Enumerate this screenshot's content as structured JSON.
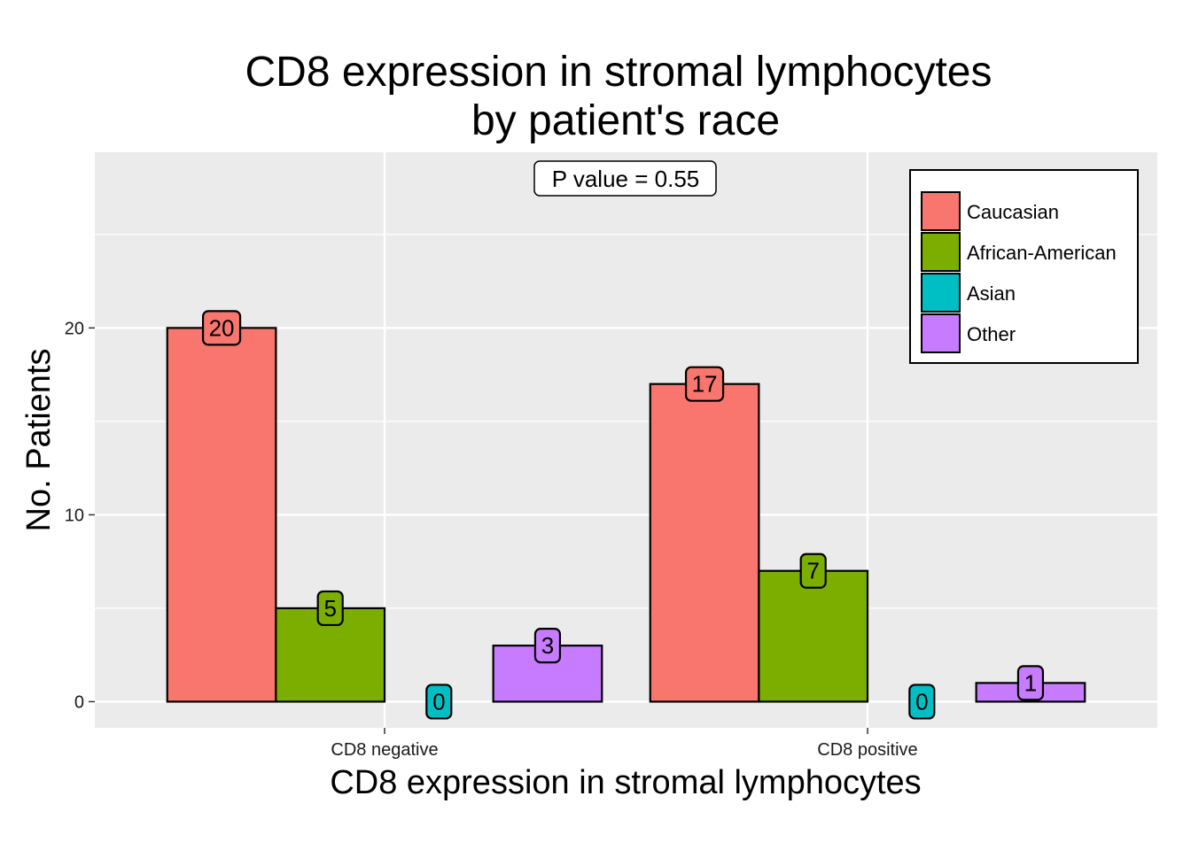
{
  "chart_data": {
    "type": "bar",
    "title": [
      "CD8 expression in stromal lymphocytes",
      "by patient's race"
    ],
    "xlabel": "CD8 expression in stromal lymphocytes",
    "ylabel": "No. Patients",
    "categories": [
      "CD8 negative",
      "CD8 positive"
    ],
    "series": [
      {
        "name": "Caucasian",
        "color": "#F8766D",
        "values": [
          20,
          17
        ]
      },
      {
        "name": "African-American",
        "color": "#7CAE00",
        "values": [
          5,
          7
        ]
      },
      {
        "name": "Asian",
        "color": "#00BFC4",
        "values": [
          0,
          0
        ]
      },
      {
        "name": "Other",
        "color": "#C77CFF",
        "values": [
          3,
          1
        ]
      }
    ],
    "y_ticks": [
      0,
      10,
      20
    ],
    "ylim": [
      -1.4,
      29.4
    ],
    "annotation": "P value = 0.55",
    "legend_position": "top-right",
    "grid": true,
    "panel_background": "#EBEBEB"
  }
}
